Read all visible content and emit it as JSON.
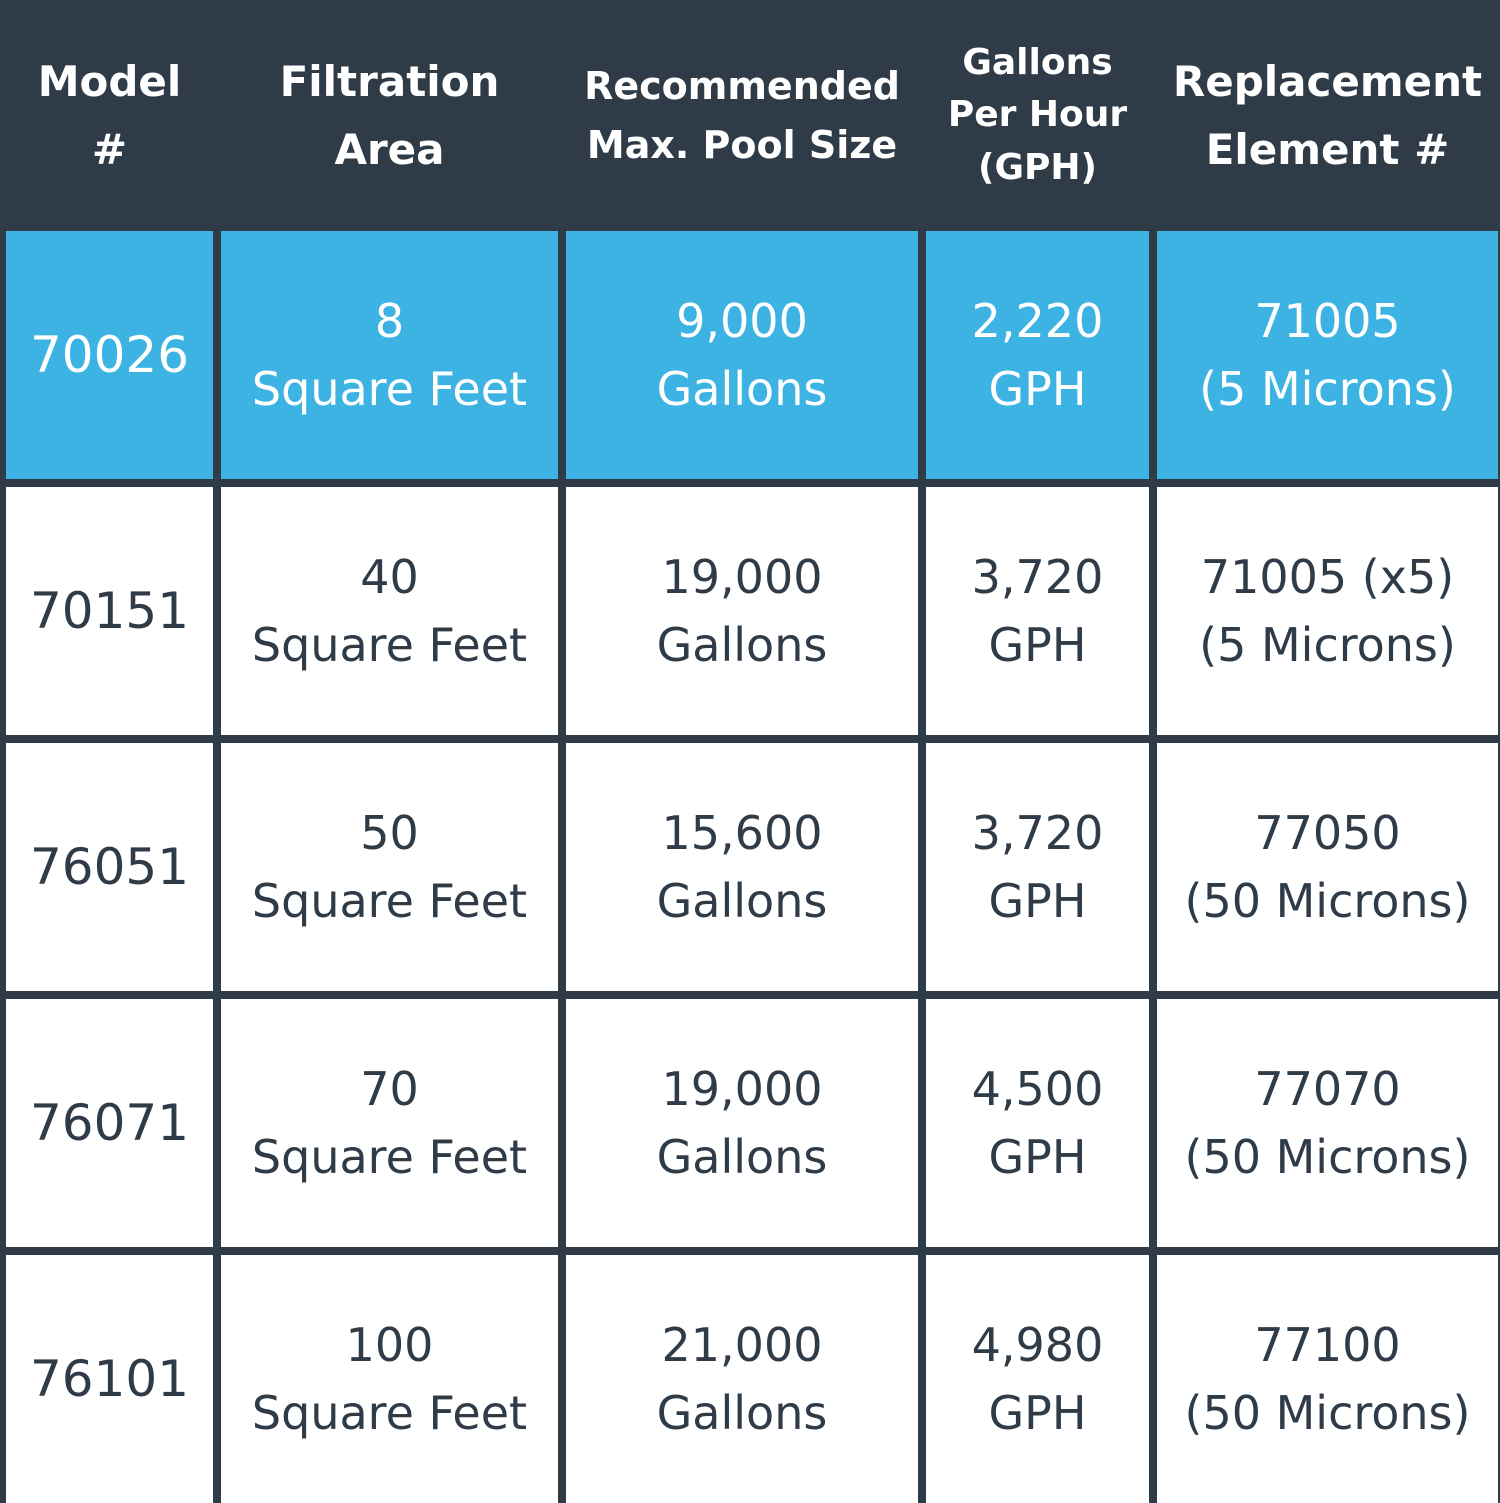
{
  "colors": {
    "header_bg": "#2f3b47",
    "highlight_bg": "#3db3e3",
    "row_bg": "#ffffff",
    "text_dark": "#2f3b47",
    "text_light": "#ffffff"
  },
  "headers": [
    {
      "line1": "Model",
      "line2": "#",
      "line3": ""
    },
    {
      "line1": "Filtration",
      "line2": "Area",
      "line3": ""
    },
    {
      "line1": "Recommended",
      "line2": "Max. Pool Size",
      "line3": ""
    },
    {
      "line1": "Gallons",
      "line2": "Per Hour",
      "line3": "(GPH)"
    },
    {
      "line1": "Replacement",
      "line2": "Element #",
      "line3": ""
    }
  ],
  "rows": [
    {
      "model": "70026",
      "area_value": "8",
      "area_unit": "Square Feet",
      "pool_value": "9,000",
      "pool_unit": "Gallons",
      "gph_value": "2,220",
      "gph_unit": "GPH",
      "element_value": "71005",
      "element_note": "(5 Microns)",
      "highlighted": true
    },
    {
      "model": "70151",
      "area_value": "40",
      "area_unit": "Square Feet",
      "pool_value": "19,000",
      "pool_unit": "Gallons",
      "gph_value": "3,720",
      "gph_unit": "GPH",
      "element_value": "71005 (x5)",
      "element_note": "(5 Microns)",
      "highlighted": false
    },
    {
      "model": "76051",
      "area_value": "50",
      "area_unit": "Square Feet",
      "pool_value": "15,600",
      "pool_unit": "Gallons",
      "gph_value": "3,720",
      "gph_unit": "GPH",
      "element_value": "77050",
      "element_note": "(50 Microns)",
      "highlighted": false
    },
    {
      "model": "76071",
      "area_value": "70",
      "area_unit": "Square Feet",
      "pool_value": "19,000",
      "pool_unit": "Gallons",
      "gph_value": "4,500",
      "gph_unit": "GPH",
      "element_value": "77070",
      "element_note": "(50 Microns)",
      "highlighted": false
    },
    {
      "model": "76101",
      "area_value": "100",
      "area_unit": "Square Feet",
      "pool_value": "21,000",
      "pool_unit": "Gallons",
      "gph_value": "4,980",
      "gph_unit": "GPH",
      "element_value": "77100",
      "element_note": "(50 Microns)",
      "highlighted": false
    }
  ]
}
